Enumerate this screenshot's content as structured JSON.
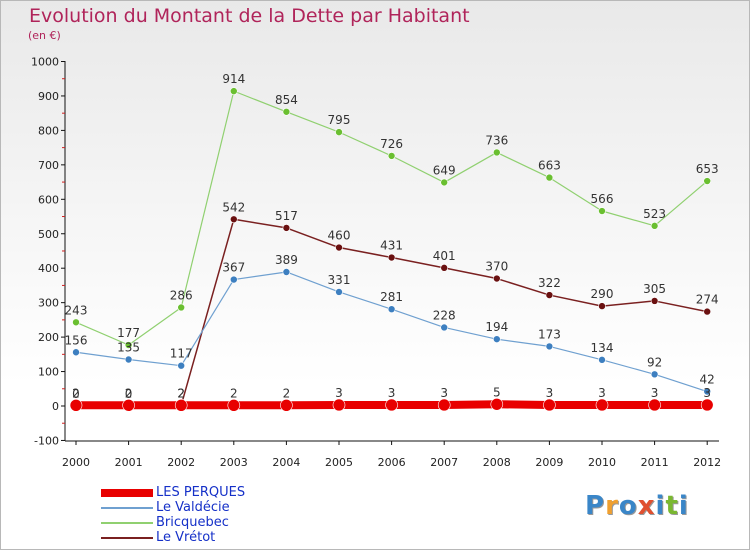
{
  "title": "Evolution du Montant de la Dette par Habitant",
  "unit_label": "(en €)",
  "logo": {
    "text": "Proxiti",
    "colors": [
      "#3a86c8",
      "#f0a030",
      "#3a86c8",
      "#e05030",
      "#3a86c8",
      "#7ab830",
      "#3a86c8"
    ]
  },
  "chart_data": {
    "type": "line",
    "x": [
      "2000",
      "2001",
      "2002",
      "2003",
      "2004",
      "2005",
      "2006",
      "2007",
      "2008",
      "2009",
      "2010",
      "2011",
      "2012"
    ],
    "ylim": [
      -100,
      1000
    ],
    "yticks": [
      "-100",
      "0",
      "100",
      "200",
      "300",
      "400",
      "500",
      "600",
      "700",
      "800",
      "900",
      "1000"
    ],
    "grid": false,
    "legend_position": "bottom-left",
    "series": [
      {
        "name": "Bricquebec",
        "color": "#90d070",
        "marker": "#6abf30",
        "width": 1.2,
        "r": 3.5,
        "values": [
          243,
          177,
          286,
          914,
          854,
          795,
          726,
          649,
          736,
          663,
          566,
          523,
          653
        ],
        "labels": [
          "243",
          "177",
          "286",
          "914",
          "854",
          "795",
          "726",
          "649",
          "736",
          "663",
          "566",
          "523",
          "653"
        ]
      },
      {
        "name": "Le Vrétot",
        "color": "#7a2020",
        "marker": "#6a1010",
        "width": 1.5,
        "r": 3.5,
        "values": [
          0,
          0,
          2,
          542,
          517,
          460,
          431,
          401,
          370,
          322,
          290,
          305,
          274
        ],
        "labels": [
          "0",
          "0",
          "2",
          "542",
          "517",
          "460",
          "431",
          "401",
          "370",
          "322",
          "290",
          "305",
          "274"
        ]
      },
      {
        "name": "Le Valdécie",
        "color": "#6fa0d0",
        "marker": "#3d7fc0",
        "width": 1.2,
        "r": 3.5,
        "values": [
          156,
          135,
          117,
          367,
          389,
          331,
          281,
          228,
          194,
          173,
          134,
          92,
          42
        ],
        "labels": [
          "156",
          "135",
          "117",
          "367",
          "389",
          "331",
          "281",
          "228",
          "194",
          "173",
          "134",
          "92",
          "42"
        ]
      },
      {
        "name": "LES PERQUES",
        "color": "#e80000",
        "marker": "#e80000",
        "width": 8,
        "r": 6,
        "values": [
          2,
          2,
          2,
          2,
          2,
          3,
          3,
          3,
          5,
          3,
          3,
          3,
          3
        ],
        "labels": [
          "2",
          "2",
          "2",
          "2",
          "2",
          "3",
          "3",
          "3",
          "5",
          "3",
          "3",
          "3",
          "3"
        ]
      }
    ],
    "legend": [
      "LES PERQUES",
      "Le Valdécie",
      "Bricquebec",
      "Le Vrétot"
    ]
  }
}
